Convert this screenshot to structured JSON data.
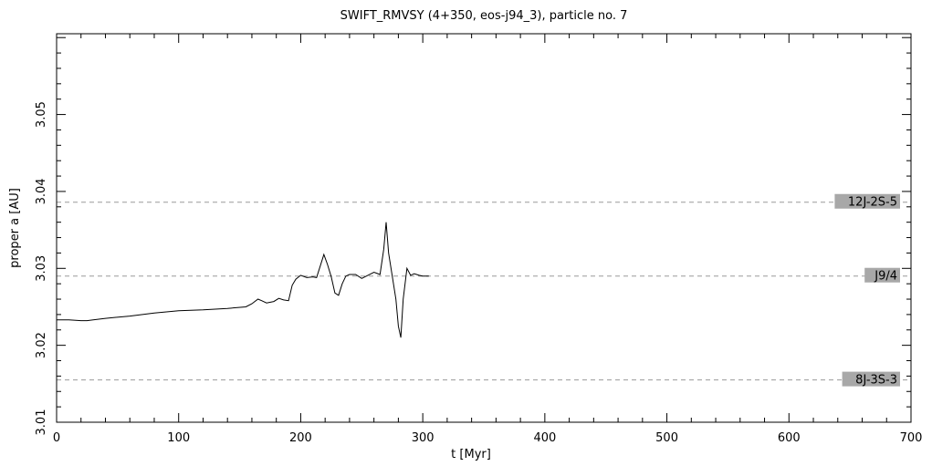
{
  "chart_data": {
    "type": "line",
    "title": "SWIFT_RMVSY (4+350, eos-j94_3), particle no. 7",
    "xlabel": "t [Myr]",
    "ylabel": "proper a [AU]",
    "xlim": [
      0,
      700
    ],
    "ylim": [
      3.01,
      3.0605
    ],
    "x_ticks": [
      0,
      100,
      200,
      300,
      400,
      500,
      600,
      700
    ],
    "x_tick_labels": [
      "0",
      "100",
      "200",
      "300",
      "400",
      "500",
      "600",
      "700"
    ],
    "y_ticks": [
      3.01,
      3.02,
      3.03,
      3.04,
      3.05
    ],
    "y_tick_labels": [
      "3.01",
      "3.02",
      "3.03",
      "3.04",
      "3.05"
    ],
    "grid": false,
    "reference_lines": [
      {
        "label": "12J-2S-5",
        "y": 3.0386
      },
      {
        "label": "J9/4",
        "y": 3.029
      },
      {
        "label": "8J-3S-3",
        "y": 3.0155
      }
    ],
    "series": [
      {
        "x": [
          0,
          10,
          20,
          25,
          30,
          40,
          60,
          80,
          100,
          120,
          140,
          155,
          160,
          165,
          168,
          172,
          178,
          182,
          186,
          190,
          193,
          196,
          200,
          205,
          210,
          213,
          216,
          219,
          222,
          225,
          228,
          231,
          234,
          237,
          240,
          245,
          250,
          255,
          260,
          265,
          268,
          270,
          272,
          275,
          278,
          280,
          282,
          284,
          287,
          290,
          293,
          297,
          300,
          305
        ],
        "y": [
          3.0233,
          3.0233,
          3.0232,
          3.0232,
          3.0233,
          3.0235,
          3.0238,
          3.0242,
          3.0245,
          3.0246,
          3.0248,
          3.025,
          3.0254,
          3.026,
          3.0258,
          3.0255,
          3.0257,
          3.0261,
          3.0259,
          3.0258,
          3.0278,
          3.0286,
          3.0291,
          3.0288,
          3.0289,
          3.0288,
          3.0303,
          3.0318,
          3.0305,
          3.0289,
          3.0268,
          3.0265,
          3.028,
          3.029,
          3.0292,
          3.0292,
          3.0287,
          3.0291,
          3.0295,
          3.0292,
          3.0325,
          3.036,
          3.032,
          3.029,
          3.026,
          3.0225,
          3.021,
          3.026,
          3.03,
          3.0291,
          3.0293,
          3.0291,
          3.029,
          3.029
        ]
      }
    ],
    "line_color": "#000000",
    "reference_line_color": "#9a9a9a",
    "label_box_color": "#a8a8a8"
  }
}
